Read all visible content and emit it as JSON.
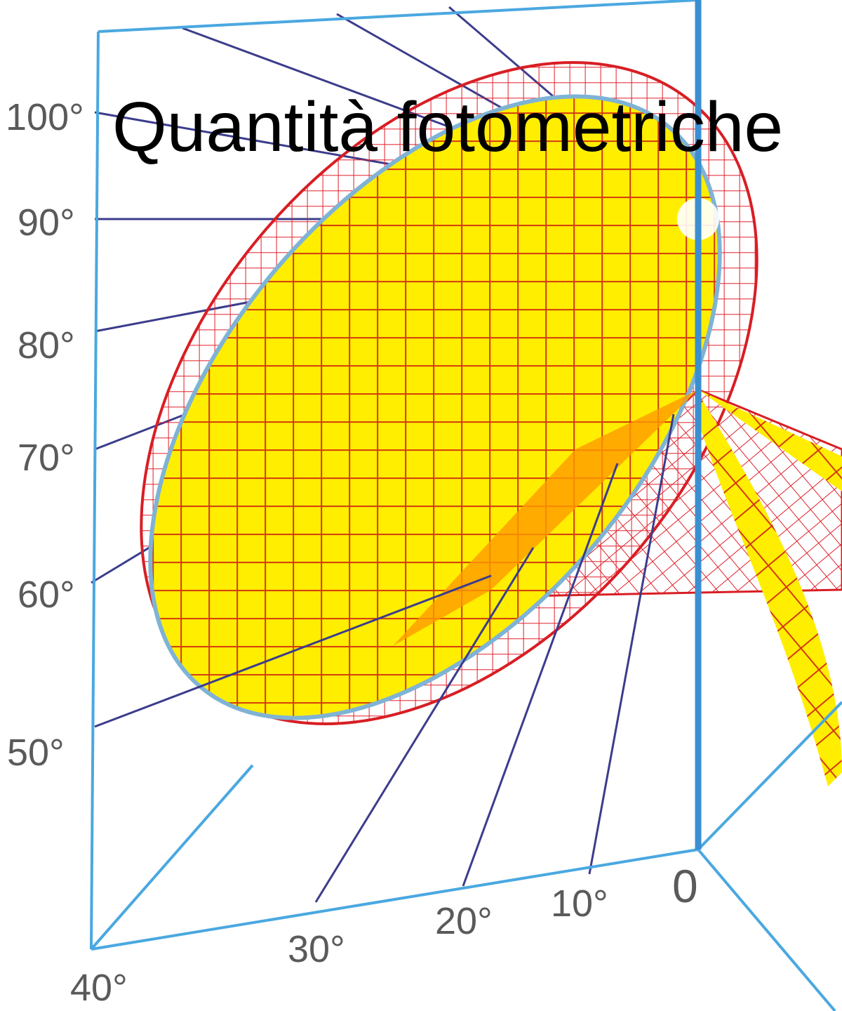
{
  "title": "Quantità fotometriche",
  "side_labels": [
    "100°",
    "90°",
    "80°",
    "70°",
    "60°",
    "50°"
  ],
  "bottom_labels": [
    "40°",
    "30°",
    "20°",
    "10°",
    "0"
  ]
}
